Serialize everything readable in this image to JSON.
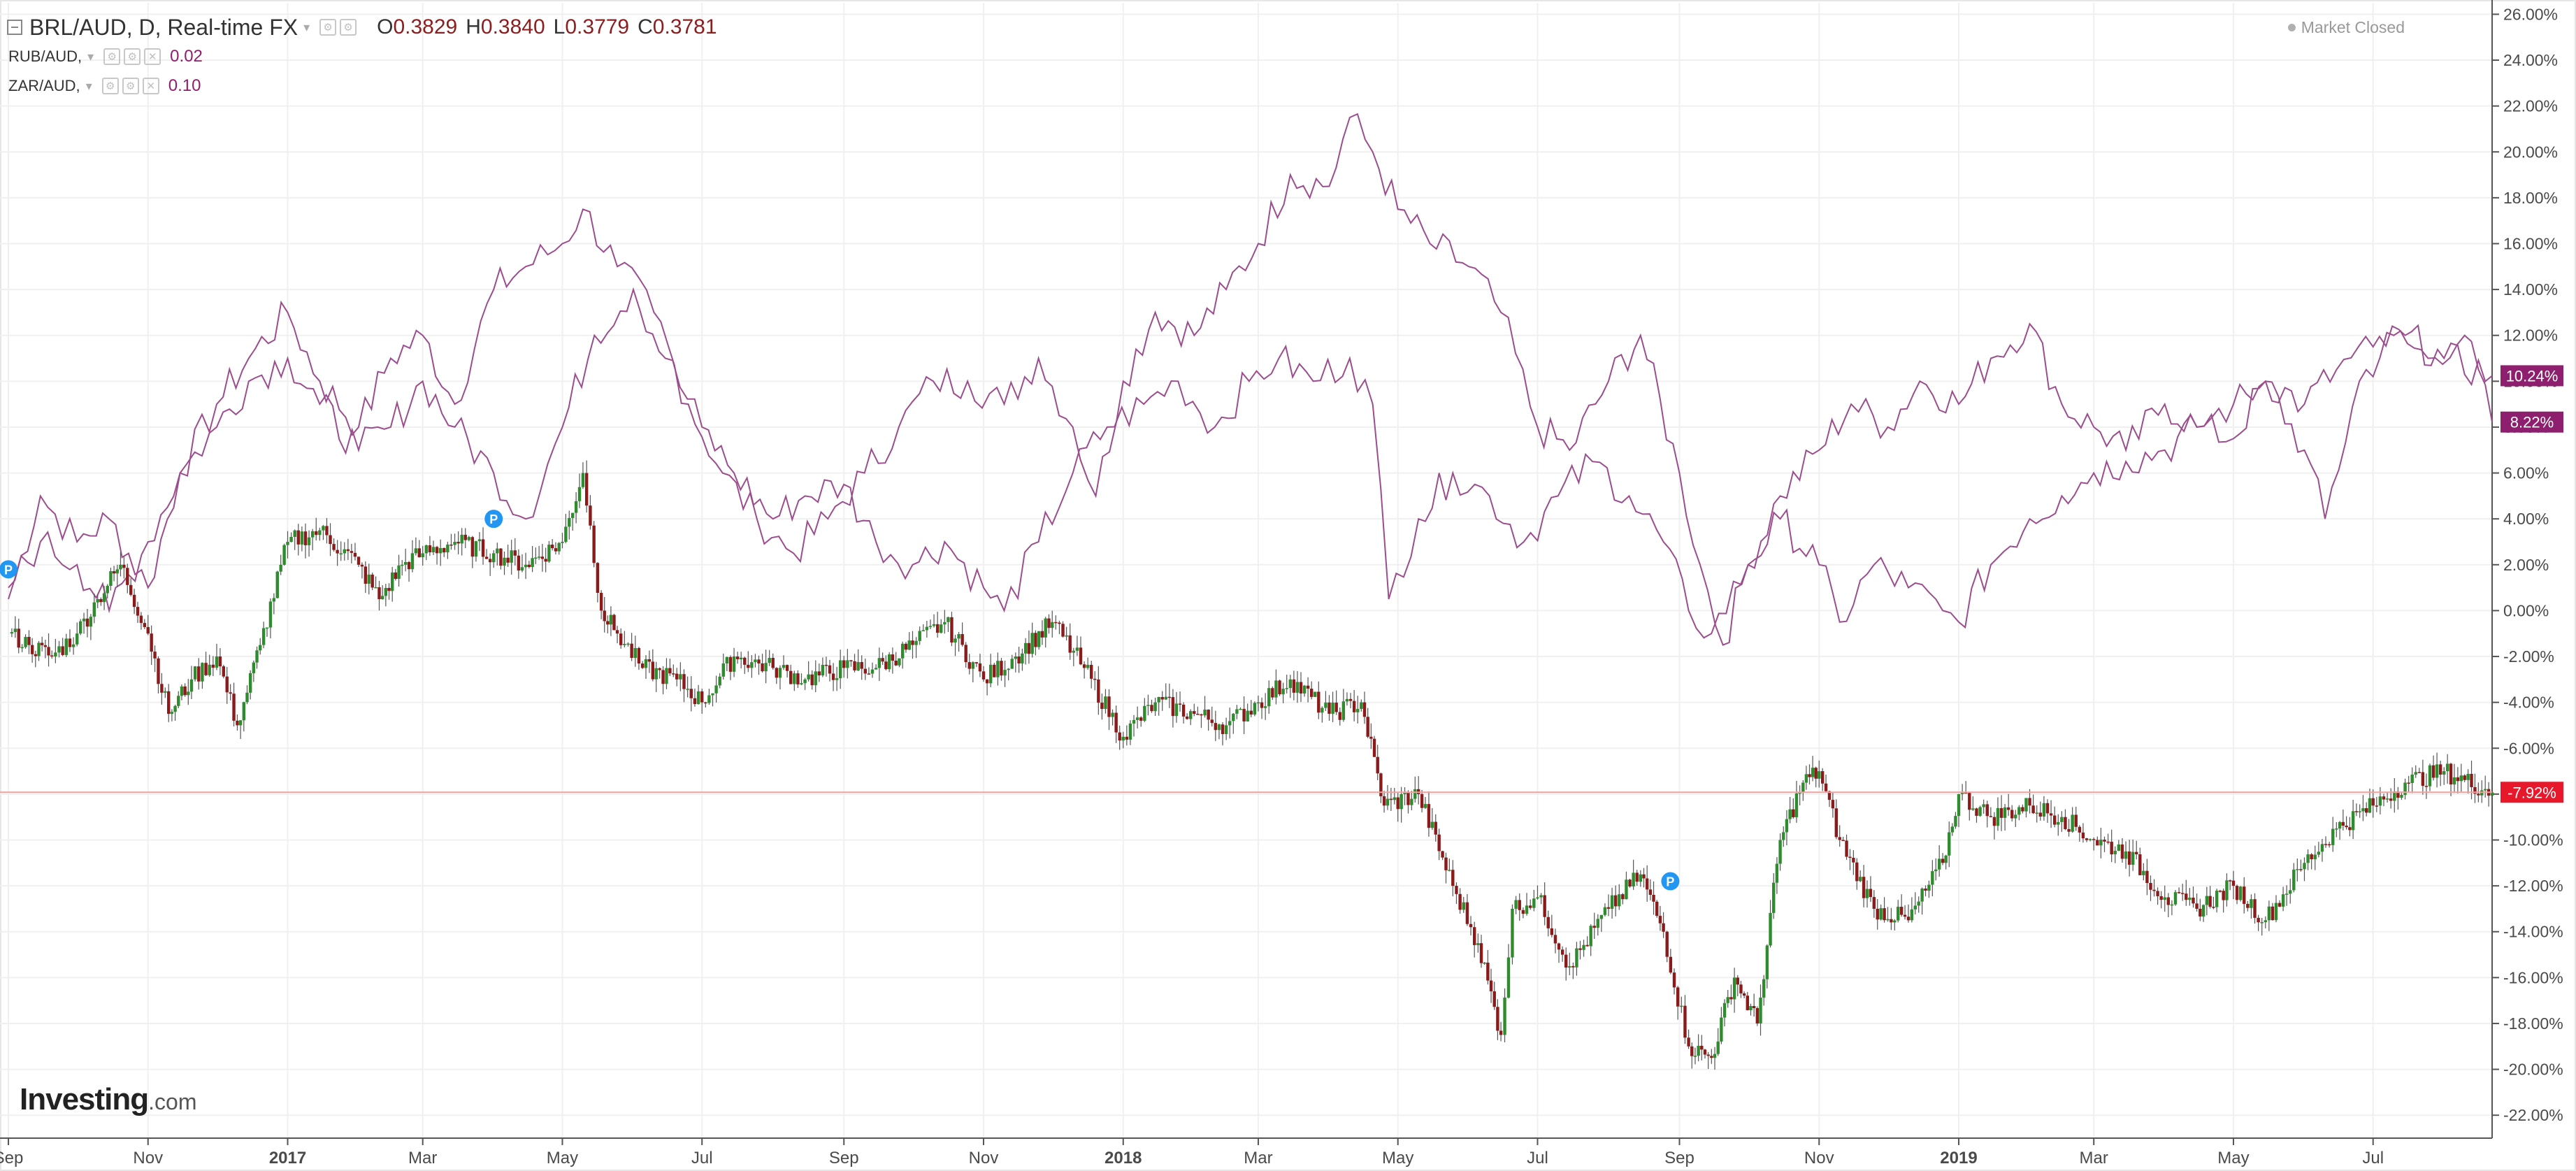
{
  "header": {
    "main_symbol": "BRL/AUD, D, Real-time FX",
    "ohlc": [
      {
        "key": "O",
        "value": "0.3829"
      },
      {
        "key": "H",
        "value": "0.3840"
      },
      {
        "key": "L",
        "value": "0.3779"
      },
      {
        "key": "C",
        "value": "0.3781"
      }
    ],
    "comparisons": [
      {
        "symbol": "RUB/AUD,",
        "value": "0.02"
      },
      {
        "symbol": "ZAR/AUD,",
        "value": "0.10"
      }
    ],
    "market_status": "Market Closed"
  },
  "branding": {
    "name": "Investing",
    "domain": ".com"
  },
  "colors": {
    "background": "#ffffff",
    "grid": "#f0f0f0",
    "axis_text": "#4a4a4a",
    "compare_line": "#9b4d8e",
    "badge": "#8e1f6e",
    "candle_up": "#2e8b2e",
    "candle_down": "#8b1a1a",
    "current_price_line": "#f2a0a0",
    "current_price_badge": "#e8182b",
    "marker": "#2196f3"
  },
  "chart_data": {
    "type": "line",
    "y_unit": "%",
    "ylim": [
      -23,
      26.5
    ],
    "yticks": [
      "26.00%",
      "24.00%",
      "22.00%",
      "20.00%",
      "18.00%",
      "16.00%",
      "14.00%",
      "12.00%",
      "10.00%",
      "8.00%",
      "6.00%",
      "4.00%",
      "2.00%",
      "0.00%",
      "-2.00%",
      "-4.00%",
      "-6.00%",
      "-8.00%",
      "-10.00%",
      "-12.00%",
      "-14.00%",
      "-16.00%",
      "-18.00%",
      "-20.00%",
      "-22.00%"
    ],
    "xlim": [
      "2016-09-01",
      "2019-08-22"
    ],
    "xticks": [
      {
        "date": "2016-09-01",
        "label": "Sep",
        "bold": false
      },
      {
        "date": "2016-11-01",
        "label": "Nov",
        "bold": false
      },
      {
        "date": "2017-01-01",
        "label": "2017",
        "bold": true
      },
      {
        "date": "2017-03-01",
        "label": "Mar",
        "bold": false
      },
      {
        "date": "2017-05-01",
        "label": "May",
        "bold": false
      },
      {
        "date": "2017-07-01",
        "label": "Jul",
        "bold": false
      },
      {
        "date": "2017-09-01",
        "label": "Sep",
        "bold": false
      },
      {
        "date": "2017-11-01",
        "label": "Nov",
        "bold": false
      },
      {
        "date": "2018-01-01",
        "label": "2018",
        "bold": true
      },
      {
        "date": "2018-03-01",
        "label": "Mar",
        "bold": false
      },
      {
        "date": "2018-05-01",
        "label": "May",
        "bold": false
      },
      {
        "date": "2018-07-01",
        "label": "Jul",
        "bold": false
      },
      {
        "date": "2018-09-01",
        "label": "Sep",
        "bold": false
      },
      {
        "date": "2018-11-01",
        "label": "Nov",
        "bold": false
      },
      {
        "date": "2019-01-01",
        "label": "2019",
        "bold": true
      },
      {
        "date": "2019-03-01",
        "label": "Mar",
        "bold": false
      },
      {
        "date": "2019-05-01",
        "label": "May",
        "bold": false
      },
      {
        "date": "2019-07-01",
        "label": "Jul",
        "bold": false
      }
    ],
    "series": [
      {
        "name": "RUB/AUD",
        "style": "line",
        "last_label": "8.22%",
        "points": [
          [
            "2016-09-01",
            0.5
          ],
          [
            "2016-09-15",
            5.0
          ],
          [
            "2016-10-01",
            3.0
          ],
          [
            "2016-10-15",
            4.0
          ],
          [
            "2016-11-01",
            1.0
          ],
          [
            "2016-11-15",
            6.0
          ],
          [
            "2016-12-01",
            9.0
          ],
          [
            "2016-12-15",
            11.0
          ],
          [
            "2017-01-01",
            13.0
          ],
          [
            "2017-01-15",
            10.0
          ],
          [
            "2017-02-01",
            8.0
          ],
          [
            "2017-02-15",
            11.0
          ],
          [
            "2017-03-01",
            12.0
          ],
          [
            "2017-03-15",
            9.0
          ],
          [
            "2017-04-01",
            14.0
          ],
          [
            "2017-04-15",
            15.0
          ],
          [
            "2017-05-01",
            16.0
          ],
          [
            "2017-05-10",
            17.5
          ],
          [
            "2017-05-25",
            15.0
          ],
          [
            "2017-06-10",
            13.0
          ],
          [
            "2017-06-25",
            9.0
          ],
          [
            "2017-07-10",
            6.0
          ],
          [
            "2017-07-25",
            4.0
          ],
          [
            "2017-08-10",
            2.5
          ],
          [
            "2017-08-25",
            4.0
          ],
          [
            "2017-09-10",
            6.0
          ],
          [
            "2017-09-25",
            8.0
          ],
          [
            "2017-10-10",
            10.0
          ],
          [
            "2017-10-25",
            10.0
          ],
          [
            "2017-11-10",
            9.0
          ],
          [
            "2017-11-25",
            11.0
          ],
          [
            "2017-12-10",
            8.0
          ],
          [
            "2017-12-20",
            5.0
          ],
          [
            "2018-01-01",
            10.0
          ],
          [
            "2018-01-15",
            13.0
          ],
          [
            "2018-02-01",
            12.0
          ],
          [
            "2018-02-15",
            14.0
          ],
          [
            "2018-03-01",
            16.0
          ],
          [
            "2018-03-15",
            19.0
          ],
          [
            "2018-04-01",
            18.5
          ],
          [
            "2018-04-10",
            21.5
          ],
          [
            "2018-04-20",
            20.0
          ],
          [
            "2018-05-01",
            17.5
          ],
          [
            "2018-05-15",
            16.0
          ],
          [
            "2018-06-01",
            15.0
          ],
          [
            "2018-06-15",
            13.0
          ],
          [
            "2018-07-01",
            8.0
          ],
          [
            "2018-07-15",
            7.0
          ],
          [
            "2018-08-01",
            10.0
          ],
          [
            "2018-08-15",
            12.0
          ],
          [
            "2018-09-01",
            6.0
          ],
          [
            "2018-09-10",
            2.0
          ],
          [
            "2018-09-20",
            -1.5
          ],
          [
            "2018-10-01",
            2.0
          ],
          [
            "2018-10-15",
            5.0
          ],
          [
            "2018-11-01",
            7.0
          ],
          [
            "2018-11-15",
            9.0
          ],
          [
            "2018-12-01",
            8.0
          ],
          [
            "2018-12-15",
            10.0
          ],
          [
            "2019-01-01",
            9.0
          ],
          [
            "2019-01-15",
            11.0
          ],
          [
            "2019-02-01",
            12.5
          ],
          [
            "2019-02-15",
            9.0
          ],
          [
            "2019-03-01",
            8.0
          ],
          [
            "2019-03-15",
            7.0
          ],
          [
            "2019-04-01",
            9.0
          ],
          [
            "2019-04-15",
            8.0
          ],
          [
            "2019-05-01",
            7.5
          ],
          [
            "2019-05-15",
            10.0
          ],
          [
            "2019-06-01",
            7.0
          ],
          [
            "2019-06-10",
            4.0
          ],
          [
            "2019-06-25",
            10.0
          ],
          [
            "2019-07-10",
            12.0
          ],
          [
            "2019-07-25",
            11.0
          ],
          [
            "2019-08-10",
            12.0
          ],
          [
            "2019-08-22",
            8.22
          ]
        ]
      },
      {
        "name": "ZAR/AUD",
        "style": "line",
        "last_label": "10.24%",
        "points": [
          [
            "2016-09-01",
            1.0
          ],
          [
            "2016-09-15",
            3.0
          ],
          [
            "2016-10-01",
            2.0
          ],
          [
            "2016-10-15",
            0.0
          ],
          [
            "2016-11-01",
            3.0
          ],
          [
            "2016-11-15",
            6.0
          ],
          [
            "2016-12-01",
            8.0
          ],
          [
            "2016-12-15",
            10.0
          ],
          [
            "2017-01-01",
            11.0
          ],
          [
            "2017-01-15",
            9.0
          ],
          [
            "2017-02-01",
            7.0
          ],
          [
            "2017-02-15",
            8.0
          ],
          [
            "2017-03-01",
            10.0
          ],
          [
            "2017-03-15",
            8.0
          ],
          [
            "2017-04-01",
            6.0
          ],
          [
            "2017-04-15",
            4.0
          ],
          [
            "2017-05-01",
            8.0
          ],
          [
            "2017-05-15",
            12.0
          ],
          [
            "2017-06-01",
            14.0
          ],
          [
            "2017-06-15",
            11.0
          ],
          [
            "2017-07-01",
            8.0
          ],
          [
            "2017-07-15",
            6.0
          ],
          [
            "2017-08-01",
            4.0
          ],
          [
            "2017-08-15",
            5.0
          ],
          [
            "2017-09-01",
            5.5
          ],
          [
            "2017-09-15",
            3.0
          ],
          [
            "2017-10-01",
            2.0
          ],
          [
            "2017-10-15",
            3.0
          ],
          [
            "2017-11-01",
            1.0
          ],
          [
            "2017-11-10",
            0.0
          ],
          [
            "2017-11-25",
            3.0
          ],
          [
            "2017-12-10",
            6.0
          ],
          [
            "2017-12-25",
            8.0
          ],
          [
            "2018-01-10",
            9.0
          ],
          [
            "2018-01-25",
            10.0
          ],
          [
            "2018-02-10",
            8.0
          ],
          [
            "2018-02-25",
            10.0
          ],
          [
            "2018-03-10",
            11.0
          ],
          [
            "2018-03-25",
            10.0
          ],
          [
            "2018-04-10",
            11.0
          ],
          [
            "2018-04-20",
            9.0
          ],
          [
            "2018-04-27",
            0.5
          ],
          [
            "2018-05-10",
            4.0
          ],
          [
            "2018-05-25",
            6.0
          ],
          [
            "2018-06-10",
            5.0
          ],
          [
            "2018-06-25",
            3.0
          ],
          [
            "2018-07-10",
            5.0
          ],
          [
            "2018-07-25",
            6.5
          ],
          [
            "2018-08-10",
            5.0
          ],
          [
            "2018-08-25",
            3.0
          ],
          [
            "2018-09-05",
            0.0
          ],
          [
            "2018-09-15",
            -1.0
          ],
          [
            "2018-10-01",
            2.0
          ],
          [
            "2018-10-15",
            4.0
          ],
          [
            "2018-11-01",
            2.0
          ],
          [
            "2018-11-10",
            -0.5
          ],
          [
            "2018-11-25",
            2.0
          ],
          [
            "2018-12-10",
            1.0
          ],
          [
            "2018-12-25",
            0.0
          ],
          [
            "2019-01-01",
            -0.5
          ],
          [
            "2019-01-15",
            2.0
          ],
          [
            "2019-02-01",
            4.0
          ],
          [
            "2019-02-15",
            5.0
          ],
          [
            "2019-03-01",
            6.0
          ],
          [
            "2019-03-15",
            6.5
          ],
          [
            "2019-04-01",
            7.0
          ],
          [
            "2019-04-15",
            8.0
          ],
          [
            "2019-05-01",
            9.0
          ],
          [
            "2019-05-15",
            10.0
          ],
          [
            "2019-06-01",
            9.0
          ],
          [
            "2019-06-15",
            10.5
          ],
          [
            "2019-07-01",
            11.5
          ],
          [
            "2019-07-15",
            12.0
          ],
          [
            "2019-08-01",
            11.0
          ],
          [
            "2019-08-22",
            10.24
          ]
        ]
      },
      {
        "name": "BRL/AUD",
        "style": "candlestick",
        "last_label": "-7.92%",
        "points": [
          [
            "2016-09-01",
            -1.0
          ],
          [
            "2016-09-10",
            -1.5
          ],
          [
            "2016-09-20",
            -2.0
          ],
          [
            "2016-10-01",
            -1.0
          ],
          [
            "2016-10-10",
            0.5
          ],
          [
            "2016-10-20",
            2.0
          ],
          [
            "2016-11-01",
            -1.0
          ],
          [
            "2016-11-10",
            -4.5
          ],
          [
            "2016-11-20",
            -3.0
          ],
          [
            "2016-12-01",
            -2.0
          ],
          [
            "2016-12-10",
            -5.0
          ],
          [
            "2016-12-20",
            -1.5
          ],
          [
            "2017-01-01",
            3.0
          ],
          [
            "2017-01-15",
            3.5
          ],
          [
            "2017-02-01",
            2.0
          ],
          [
            "2017-02-10",
            0.5
          ],
          [
            "2017-02-20",
            2.0
          ],
          [
            "2017-03-01",
            2.5
          ],
          [
            "2017-03-15",
            3.0
          ],
          [
            "2017-04-01",
            2.5
          ],
          [
            "2017-04-15",
            2.0
          ],
          [
            "2017-05-01",
            3.0
          ],
          [
            "2017-05-10",
            6.0
          ],
          [
            "2017-05-18",
            0.0
          ],
          [
            "2017-05-25",
            -1.0
          ],
          [
            "2017-06-05",
            -2.5
          ],
          [
            "2017-06-20",
            -3.0
          ],
          [
            "2017-07-01",
            -4.0
          ],
          [
            "2017-07-15",
            -2.0
          ],
          [
            "2017-08-01",
            -2.5
          ],
          [
            "2017-08-15",
            -3.0
          ],
          [
            "2017-09-01",
            -2.5
          ],
          [
            "2017-09-15",
            -2.5
          ],
          [
            "2017-10-01",
            -1.5
          ],
          [
            "2017-10-15",
            -0.5
          ],
          [
            "2017-11-01",
            -3.0
          ],
          [
            "2017-11-15",
            -2.0
          ],
          [
            "2017-12-01",
            -0.5
          ],
          [
            "2017-12-15",
            -2.5
          ],
          [
            "2018-01-01",
            -5.5
          ],
          [
            "2018-01-15",
            -4.0
          ],
          [
            "2018-02-01",
            -4.5
          ],
          [
            "2018-02-15",
            -5.0
          ],
          [
            "2018-03-01",
            -4.0
          ],
          [
            "2018-03-15",
            -3.0
          ],
          [
            "2018-04-01",
            -4.5
          ],
          [
            "2018-04-15",
            -4.0
          ],
          [
            "2018-04-25",
            -8.5
          ],
          [
            "2018-05-10",
            -8.0
          ],
          [
            "2018-05-25",
            -12.0
          ],
          [
            "2018-06-05",
            -14.5
          ],
          [
            "2018-06-15",
            -18.5
          ],
          [
            "2018-06-20",
            -13.0
          ],
          [
            "2018-07-01",
            -12.5
          ],
          [
            "2018-07-15",
            -15.5
          ],
          [
            "2018-08-01",
            -13.0
          ],
          [
            "2018-08-15",
            -11.5
          ],
          [
            "2018-08-25",
            -14.0
          ],
          [
            "2018-09-05",
            -19.0
          ],
          [
            "2018-09-15",
            -19.5
          ],
          [
            "2018-09-25",
            -16.0
          ],
          [
            "2018-10-05",
            -18.0
          ],
          [
            "2018-10-15",
            -10.0
          ],
          [
            "2018-10-25",
            -7.5
          ],
          [
            "2018-11-01",
            -7.0
          ],
          [
            "2018-11-10",
            -10.0
          ],
          [
            "2018-11-25",
            -13.0
          ],
          [
            "2018-12-10",
            -13.5
          ],
          [
            "2018-12-25",
            -11.0
          ],
          [
            "2019-01-01",
            -8.0
          ],
          [
            "2019-01-15",
            -9.0
          ],
          [
            "2019-02-01",
            -8.5
          ],
          [
            "2019-02-15",
            -9.0
          ],
          [
            "2019-03-01",
            -10.0
          ],
          [
            "2019-03-15",
            -10.5
          ],
          [
            "2019-04-01",
            -12.5
          ],
          [
            "2019-04-15",
            -13.0
          ],
          [
            "2019-05-01",
            -12.0
          ],
          [
            "2019-05-15",
            -13.5
          ],
          [
            "2019-06-01",
            -11.0
          ],
          [
            "2019-06-15",
            -9.5
          ],
          [
            "2019-07-01",
            -8.5
          ],
          [
            "2019-07-15",
            -7.5
          ],
          [
            "2019-08-01",
            -7.0
          ],
          [
            "2019-08-22",
            -7.92
          ]
        ]
      }
    ],
    "current_price_level": -7.92,
    "markers": [
      {
        "date": "2016-09-01",
        "value": 1.8,
        "label": "P"
      },
      {
        "date": "2017-04-01",
        "value": 4.0,
        "label": "P"
      },
      {
        "date": "2018-08-28",
        "value": -11.8,
        "label": "P"
      }
    ],
    "grid": true,
    "legend": "top-left"
  }
}
